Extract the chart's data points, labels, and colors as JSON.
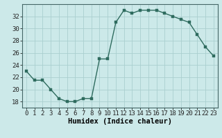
{
  "x": [
    0,
    1,
    2,
    3,
    4,
    5,
    6,
    7,
    8,
    9,
    10,
    11,
    12,
    13,
    14,
    15,
    16,
    17,
    18,
    19,
    20,
    21,
    22,
    23
  ],
  "y": [
    23,
    21.5,
    21.5,
    20,
    18.5,
    18,
    18,
    18.5,
    18.5,
    25,
    25,
    31,
    33,
    32.5,
    33,
    33,
    33,
    32.5,
    32,
    31.5,
    31,
    29,
    27,
    25.5
  ],
  "line_color": "#2e6b5e",
  "marker_color": "#2e6b5e",
  "bg_color": "#cce9e9",
  "grid_color": "#aacfcf",
  "xlabel": "Humidex (Indice chaleur)",
  "ylim": [
    17,
    34
  ],
  "xlim": [
    -0.5,
    23.5
  ],
  "yticks": [
    18,
    20,
    22,
    24,
    26,
    28,
    30,
    32
  ],
  "xticks": [
    0,
    1,
    2,
    3,
    4,
    5,
    6,
    7,
    8,
    9,
    10,
    11,
    12,
    13,
    14,
    15,
    16,
    17,
    18,
    19,
    20,
    21,
    22,
    23
  ],
  "xlabel_fontsize": 7.5,
  "tick_fontsize": 6.5,
  "linewidth": 1.0,
  "markersize": 2.5
}
